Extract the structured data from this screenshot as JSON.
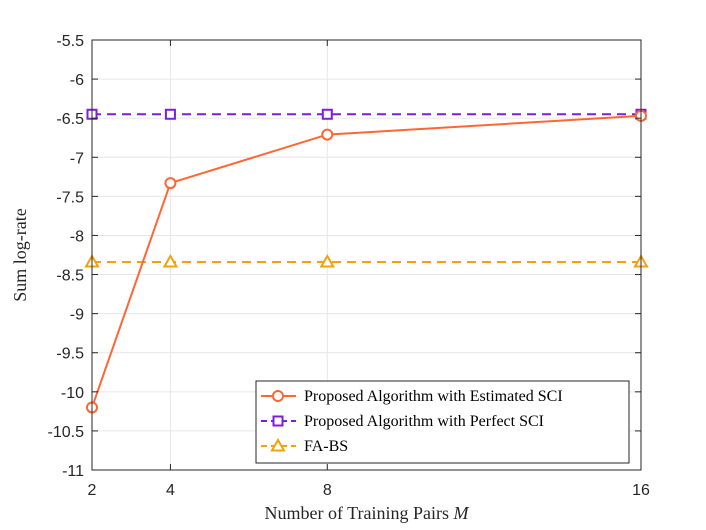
{
  "chart_data": {
    "type": "line",
    "title": "",
    "xlabel": "Number of Training Pairs",
    "xlabel_symbol": "M",
    "ylabel": "Sum log-rate",
    "x": [
      2,
      4,
      8,
      16
    ],
    "xticks": [
      "2",
      "4",
      "8",
      "16"
    ],
    "xlim": [
      2,
      16
    ],
    "ylim": [
      -11,
      -5.5
    ],
    "yticks": [
      "-5.5",
      "-6",
      "-6.5",
      "-7",
      "-7.5",
      "-8",
      "-8.5",
      "-9",
      "-9.5",
      "-10",
      "-10.5",
      "-11"
    ],
    "grid": true,
    "legend_position": "bottom-right",
    "series": [
      {
        "name": "Proposed Algorithm with Estimated SCI",
        "values": [
          -10.2,
          -7.33,
          -6.71,
          -6.47
        ],
        "color": "#ff6633",
        "marker": "circle",
        "line": "solid"
      },
      {
        "name": "Proposed Algorithm with Perfect SCI",
        "values": [
          -6.45,
          -6.45,
          -6.45,
          -6.45
        ],
        "color": "#7e1ce0",
        "marker": "square",
        "line": "dashed"
      },
      {
        "name": "FA-BS",
        "values": [
          -8.34,
          -8.34,
          -8.34,
          -8.34
        ],
        "color": "#f5a00f",
        "marker": "triangle",
        "line": "dashed"
      }
    ]
  }
}
